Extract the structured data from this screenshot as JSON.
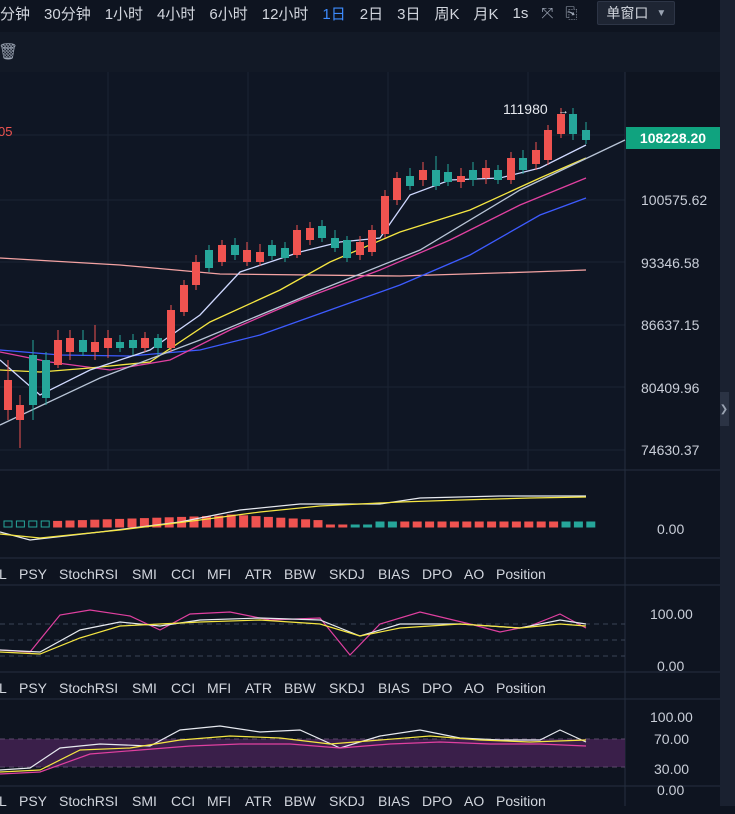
{
  "toolbar": {
    "timeframes": [
      "分钟",
      "30分钟",
      "1小时",
      "4小时",
      "6小时",
      "12小时",
      "1日",
      "2日",
      "3日",
      "周K",
      "月K",
      "1s"
    ],
    "active_timeframe": "1日",
    "window_select": "单窗口"
  },
  "main_chart": {
    "high_label": "111980",
    "left_label": "05",
    "current_price": "108228.20",
    "price_ticks": [
      "100575.62",
      "93346.58",
      "86637.15",
      "80409.96",
      "74630.37"
    ]
  },
  "macd_panel": {
    "tick": "0.00"
  },
  "kdj_panel": {
    "ticks": [
      "100.00",
      "0.00"
    ]
  },
  "rsi_panel": {
    "ticks": [
      "100.00",
      "70.00",
      "30.00",
      "0.00"
    ]
  },
  "indicator_tabs": [
    "L",
    "PSY",
    "StochRSI",
    "SMI",
    "CCI",
    "MFI",
    "ATR",
    "BBW",
    "SKDJ",
    "BIAS",
    "DPO",
    "AO",
    "Position"
  ],
  "colors": {
    "up": "#26a69a",
    "down": "#ef5350",
    "accent": "#3d8bfd",
    "price_tag": "#10a37f"
  }
}
